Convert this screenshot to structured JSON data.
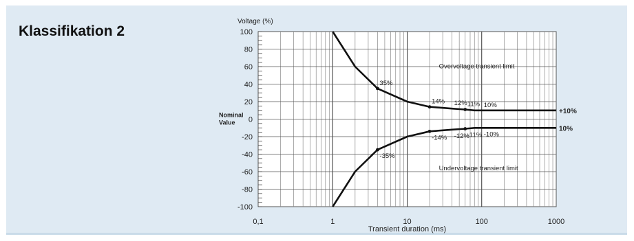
{
  "heading": "Klassifikation 2",
  "chart_data": {
    "type": "line",
    "title": "",
    "xlabel": "Transient duration (ms)",
    "ylabel": "Voltage (%)",
    "x_scale": "log",
    "xlim": [
      0.1,
      1000
    ],
    "ylim": [
      -100,
      100
    ],
    "grid": true,
    "x_ticks": [
      "0,1",
      "1",
      "10",
      "100",
      "1000"
    ],
    "y_ticks": [
      "100",
      "80",
      "60",
      "40",
      "20",
      "0",
      "-20",
      "-40",
      "-60",
      "-80",
      "-100"
    ],
    "nominal_label": [
      "Nominal",
      "Value"
    ],
    "series": [
      {
        "name": "Overvoltage transient limit",
        "x": [
          1,
          2,
          4,
          10,
          20,
          40,
          60,
          80,
          100,
          1000
        ],
        "y": [
          100,
          60,
          35,
          20,
          14,
          12,
          11,
          10,
          10,
          10
        ],
        "end_label": "+10%"
      },
      {
        "name": "Undervoltage transient limit",
        "x": [
          1,
          2,
          4,
          10,
          20,
          40,
          60,
          80,
          100,
          1000
        ],
        "y": [
          -100,
          -60,
          -35,
          -20,
          -14,
          -12,
          -11,
          -10,
          -10,
          -10
        ],
        "end_label": "10%"
      }
    ],
    "annotations": [
      {
        "text": "35%",
        "x": 4,
        "y": 35
      },
      {
        "text": "14%",
        "x": 20,
        "y": 14
      },
      {
        "text": "12%",
        "x": 40,
        "y": 12
      },
      {
        "text": "11%",
        "x": 60,
        "y": 11
      },
      {
        "text": "10%",
        "x": 100,
        "y": 10
      },
      {
        "text": "-35%",
        "x": 4,
        "y": -35
      },
      {
        "text": "-14%",
        "x": 20,
        "y": -14
      },
      {
        "text": "-12%",
        "x": 40,
        "y": -12
      },
      {
        "text": "-11%",
        "x": 60,
        "y": -11
      },
      {
        "text": "-10%",
        "x": 100,
        "y": -10
      },
      {
        "text": "Overvoltage transient limit",
        "x": 25,
        "y": 54
      },
      {
        "text": "Undervoltage transient limit",
        "x": 25,
        "y": -49
      }
    ]
  }
}
